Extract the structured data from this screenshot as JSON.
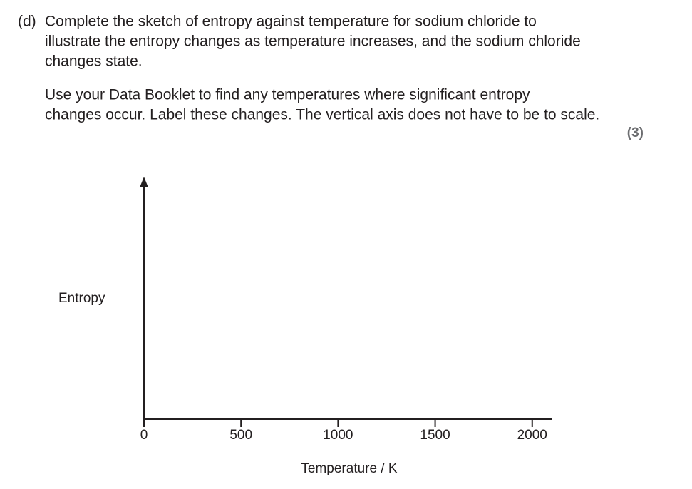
{
  "question": {
    "label": "(d)",
    "paragraphs": [
      [
        "Complete the sketch of entropy against temperature for sodium chloride to",
        "illustrate the entropy changes as temperature increases, and the sodium chloride",
        "changes state."
      ],
      [
        "Use your Data Booklet to find any temperatures where significant entropy",
        "changes occur.  Label these changes.  The vertical axis does not have to be to scale."
      ]
    ],
    "marks": "(3)"
  },
  "sketch": {
    "ylabel": "Entropy",
    "xlabel": "Temperature / K",
    "xlim": [
      0,
      2100
    ],
    "xticks": [
      0,
      500,
      1000,
      1500,
      2000
    ]
  }
}
